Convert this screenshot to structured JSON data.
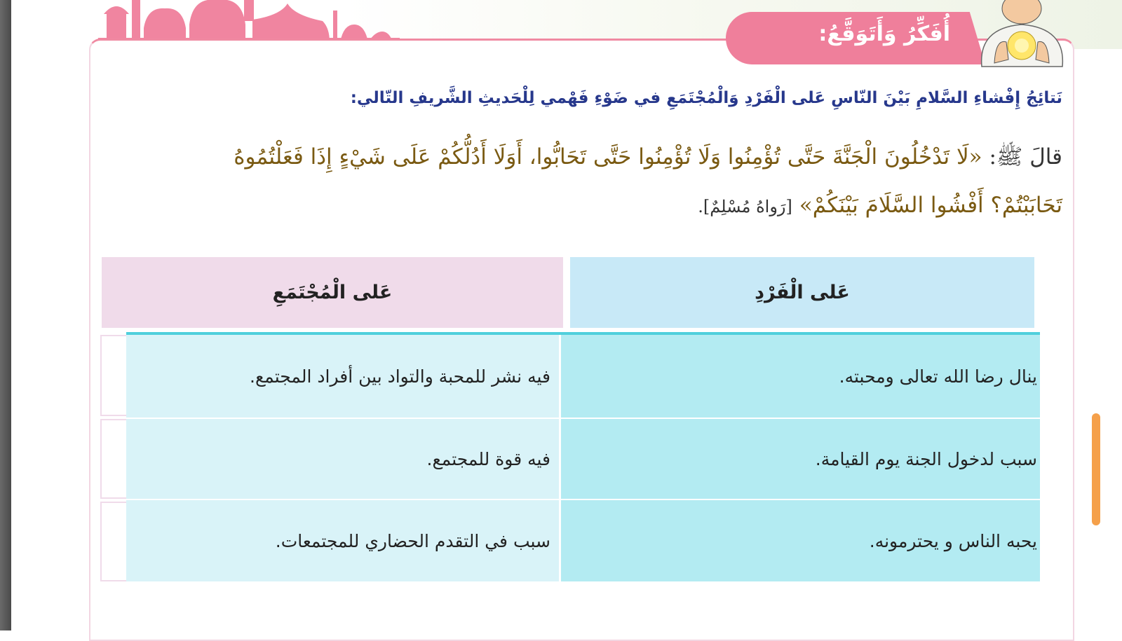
{
  "title": "أُفَكِّرُ وَأَتَوَقَّعُ:",
  "instruction": "نَتائِجُ إِفْشاءِ السَّلامِ بَيْنَ النّاسِ عَلى الْفَرْدِ وَالْمُجْتَمَعِ في ضَوْءِ فَهْمي لِلْحَديثِ الشَّريفِ التّالي:",
  "hadith": {
    "prefix": "قالَ ﷺ:",
    "line1": "«لَا تَدْخُلُونَ الْجَنَّةَ حَتَّى تُؤْمِنُوا وَلَا تُؤْمِنُوا حَتَّى تَحَابُّوا، أَوَلَا أَدُلُّكُمْ عَلَى شَيْءٍ إِذَا فَعَلْتُمُوهُ",
    "line2": "تَحَابَبْتُمْ؟ أَفْشُوا السَّلَامَ بَيْنَكُمْ»",
    "reference": "[رَواهُ مُسْلِمٌ]."
  },
  "table": {
    "headers": [
      "عَلى الْفَرْدِ",
      "عَلى الْمُجْتَمَعِ"
    ],
    "rows": [
      [
        "ينال رضا الله تعالى ومحبته.",
        "فيه نشر للمحبة والتواد بين أفراد المجتمع."
      ],
      [
        "سبب لدخول الجنة يوم القيامة.",
        "فيه قوة للمجتمع."
      ],
      [
        "يحبه الناس و يحترمونه.",
        "سبب في التقدم الحضاري للمجتمعات."
      ]
    ]
  },
  "colors": {
    "banner": "#ef7f9b",
    "instruction": "#27388c",
    "hadith": "#7a5a12",
    "header_left": "#f0dbea",
    "header_right": "#c8e9f7"
  }
}
